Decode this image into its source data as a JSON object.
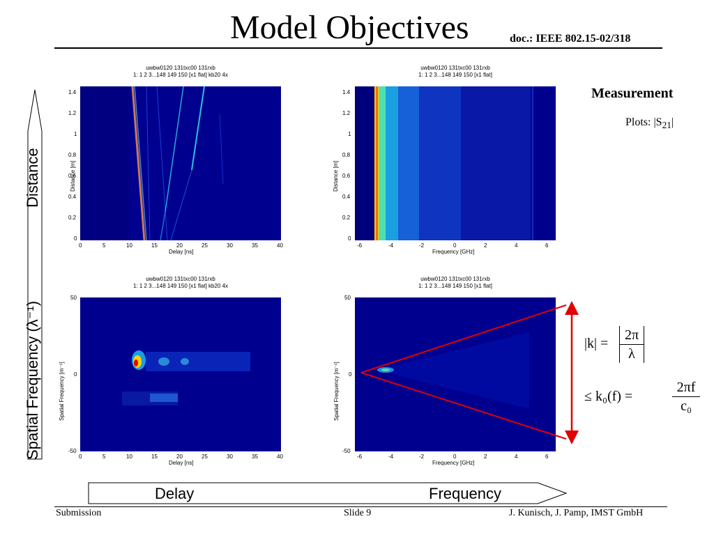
{
  "slide": {
    "title": "Model Objectives",
    "doc_ref": "doc.: IEEE 802.15-02/318",
    "footer": {
      "left": "Submission",
      "center": "Slide 9",
      "right": "J. Kunisch, J. Pamp, IMST GmbH"
    }
  },
  "side_arrow": {
    "top_label": "Distance",
    "bottom_label": "Spatial Frequency  (λ⁻¹)"
  },
  "bottom_arrow": {
    "left_label": "Delay",
    "right_label": "Frequency"
  },
  "measurement": {
    "heading": "Measurement",
    "plots_prefix": "Plots: |S",
    "plots_sub": "21",
    "plots_suffix": "|"
  },
  "formula": {
    "line1_lhs": "|k| =",
    "line1_num": "2π",
    "line1_den": "λ",
    "line2_lhs": "≤ k₀(f) =",
    "line2_num": "2πf",
    "line2_den": "c₀"
  },
  "plots": [
    {
      "id": "top-left",
      "title1": "uwbw0120 131txc00 131rxb",
      "title2": "1: 1 2 3...148 149 150 [x1 flat] kb20 4x",
      "xlabel": "Delay [ns]",
      "ylabel": "Distance [m]",
      "xticks": [
        "0",
        "5",
        "10",
        "15",
        "20",
        "25",
        "30",
        "35",
        "40"
      ],
      "yticks": [
        "1.4",
        "1.2",
        "1",
        "0.8",
        "0.6",
        "0.4",
        "0.2",
        "0"
      ]
    },
    {
      "id": "top-right",
      "title1": "uwbw0120 131txc00 131rxb",
      "title2": "1: 1 2 3...148 149 150 [x1 flat]",
      "xlabel": "Frequency [GHz]",
      "ylabel": "Distance [m]",
      "xticks": [
        "-6",
        "-4",
        "-2",
        "0",
        "2",
        "4",
        "6"
      ],
      "yticks": [
        "1.4",
        "1.2",
        "1",
        "0.8",
        "0.6",
        "0.4",
        "0.2",
        "0"
      ]
    },
    {
      "id": "bottom-left",
      "title1": "uwbw0120 131txc00 131rxb",
      "title2": "1: 1 2 3...148 149 150 [x1 flat] kb20 4x",
      "xlabel": "Delay [ns]",
      "ylabel": "Spatial Frequency [m⁻¹]",
      "xticks": [
        "0",
        "5",
        "10",
        "15",
        "20",
        "25",
        "30",
        "35",
        "40"
      ],
      "yticks": [
        "50",
        "0",
        "-50"
      ]
    },
    {
      "id": "bottom-right",
      "title1": "uwbw0120 131txc00 131rxb",
      "title2": "1: 1 2 3...148 149 150 [x1 flat]",
      "xlabel": "Frequency [GHz]",
      "ylabel": "Spatial Frequency [m⁻¹]",
      "xticks": [
        "-6",
        "-4",
        "-2",
        "0",
        "2",
        "4",
        "6"
      ],
      "yticks": [
        "50",
        "0",
        "-50"
      ]
    }
  ],
  "colors": {
    "plot_bg": "#00008f",
    "red_annotation": "#e00000"
  }
}
